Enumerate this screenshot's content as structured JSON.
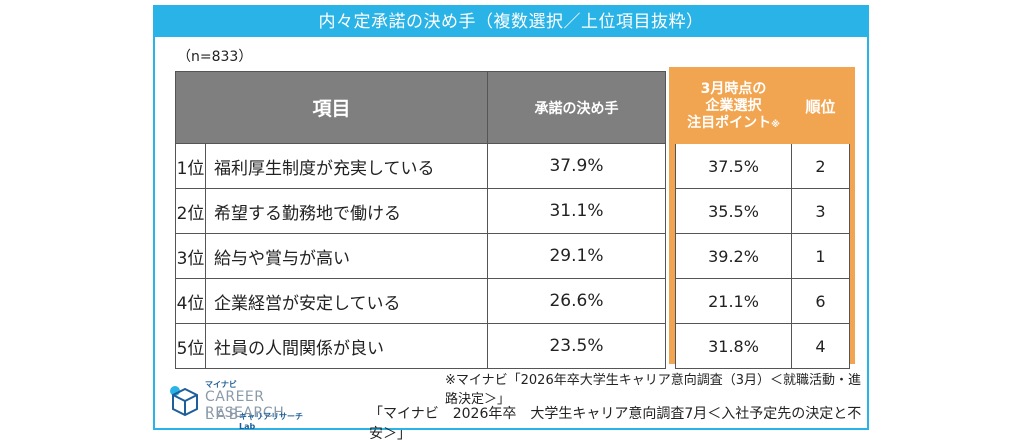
{
  "title": "内々定承諾の決め手（複数選択／上位項目抜粋）",
  "sample_note": "（n=833）",
  "table": {
    "header_item": "項目",
    "header_deciding": "承諾の決め手",
    "header_point_line1": "3月時点の",
    "header_point_line2": "企業選択",
    "header_point_line3": "注目ポイント",
    "header_point_mark": "※",
    "header_rank": "順位",
    "rows": [
      {
        "rank": "1位",
        "item": "福利厚生制度が充実している",
        "deciding": "37.9%",
        "point": "37.5%",
        "point_rank": "2"
      },
      {
        "rank": "2位",
        "item": "希望する勤務地で働ける",
        "deciding": "31.1%",
        "point": "35.5%",
        "point_rank": "3"
      },
      {
        "rank": "3位",
        "item": "給与や賞与が高い",
        "deciding": "29.1%",
        "point": "39.2%",
        "point_rank": "1"
      },
      {
        "rank": "4位",
        "item": "企業経営が安定している",
        "deciding": "26.6%",
        "point": "21.1%",
        "point_rank": "6"
      },
      {
        "rank": "5位",
        "item": "社員の人間関係が良い",
        "deciding": "23.5%",
        "point": "31.8%",
        "point_rank": "4"
      }
    ]
  },
  "source_note_1": "※マイナビ「2026年卒大学生キャリア意向調査（3月）＜就職活動・進路決定＞」",
  "source_note_2": "「マイナビ　2026年卒　大学生キャリア意向調査7月＜入社予定先の決定と不安＞」",
  "logo": {
    "small": "マイナビ",
    "line1": "CAREER RESEARCH",
    "line2": "LAB",
    "sub": "キャリアリサーチLab"
  },
  "colors": {
    "accent_blue": "#29b3e6",
    "header_gray": "#7f7f7f",
    "highlight_orange": "#f2a550"
  }
}
